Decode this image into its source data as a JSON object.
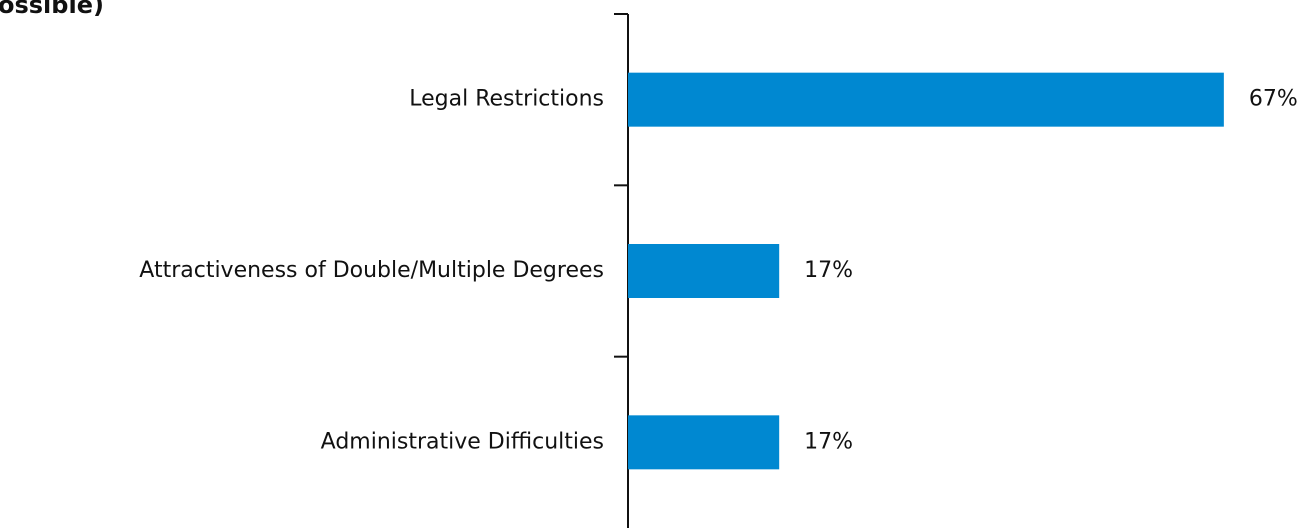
{
  "chart_data": {
    "type": "hbar",
    "title": "ossible)",
    "categories": [
      "Legal Restrictions",
      "Attractiveness of Double/Multiple Degrees",
      "Administrative Difficulties"
    ],
    "values": [
      67,
      17,
      17
    ],
    "value_labels": [
      "67%",
      "17%",
      "17%"
    ],
    "color": "#0088d1",
    "xlim": [
      0,
      75
    ]
  }
}
